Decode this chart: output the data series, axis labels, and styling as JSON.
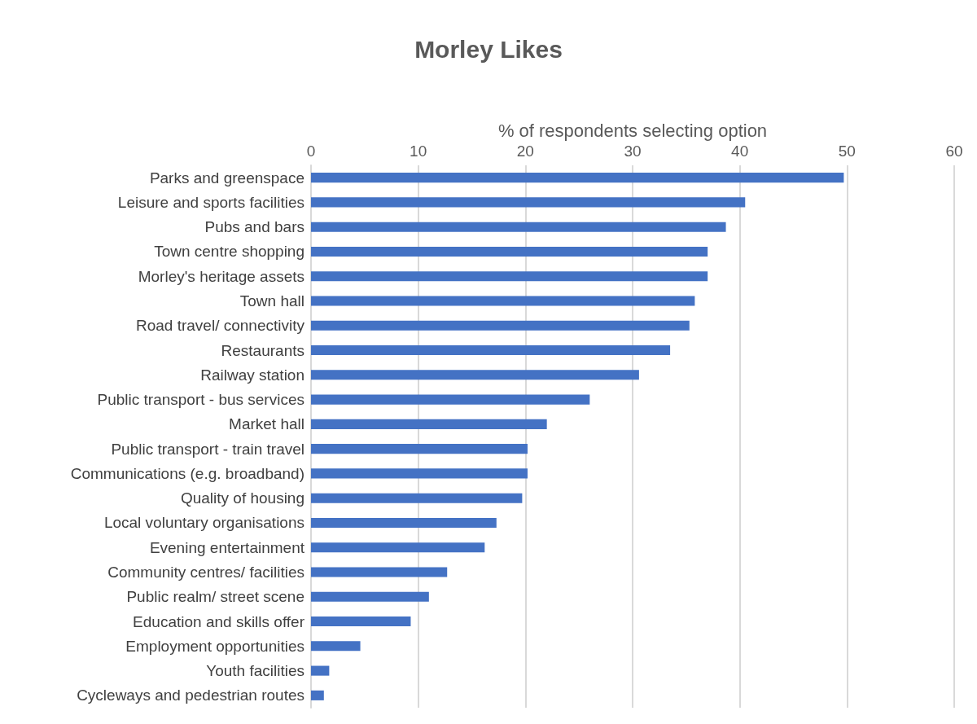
{
  "chart_data": {
    "type": "bar",
    "orientation": "horizontal",
    "title": "Morley Likes",
    "xlabel": "% of respondents selecting option",
    "categories": [
      "Parks and greenspace",
      "Leisure and sports facilities",
      "Pubs and bars",
      "Town centre shopping",
      "Morley's heritage assets",
      "Town hall",
      "Road travel/ connectivity",
      "Restaurants",
      "Railway station",
      "Public transport - bus services",
      "Market hall",
      "Public transport - train travel",
      "Communications (e.g. broadband)",
      "Quality of housing",
      "Local voluntary organisations",
      "Evening entertainment",
      "Community centres/ facilities",
      "Public realm/ street scene",
      "Education and skills offer",
      "Employment opportunities",
      "Youth facilities",
      "Cycleways and pedestrian routes"
    ],
    "values": [
      49.7,
      40.5,
      38.7,
      37.0,
      37.0,
      35.8,
      35.3,
      33.5,
      30.6,
      26.0,
      22.0,
      20.2,
      20.2,
      19.7,
      17.3,
      16.2,
      12.7,
      11.0,
      9.3,
      4.6,
      1.7,
      1.2
    ],
    "color": "#4472c4",
    "xlim": [
      0,
      60
    ],
    "xticks": [
      0,
      10,
      20,
      30,
      40,
      50,
      60
    ],
    "grid": "x"
  }
}
